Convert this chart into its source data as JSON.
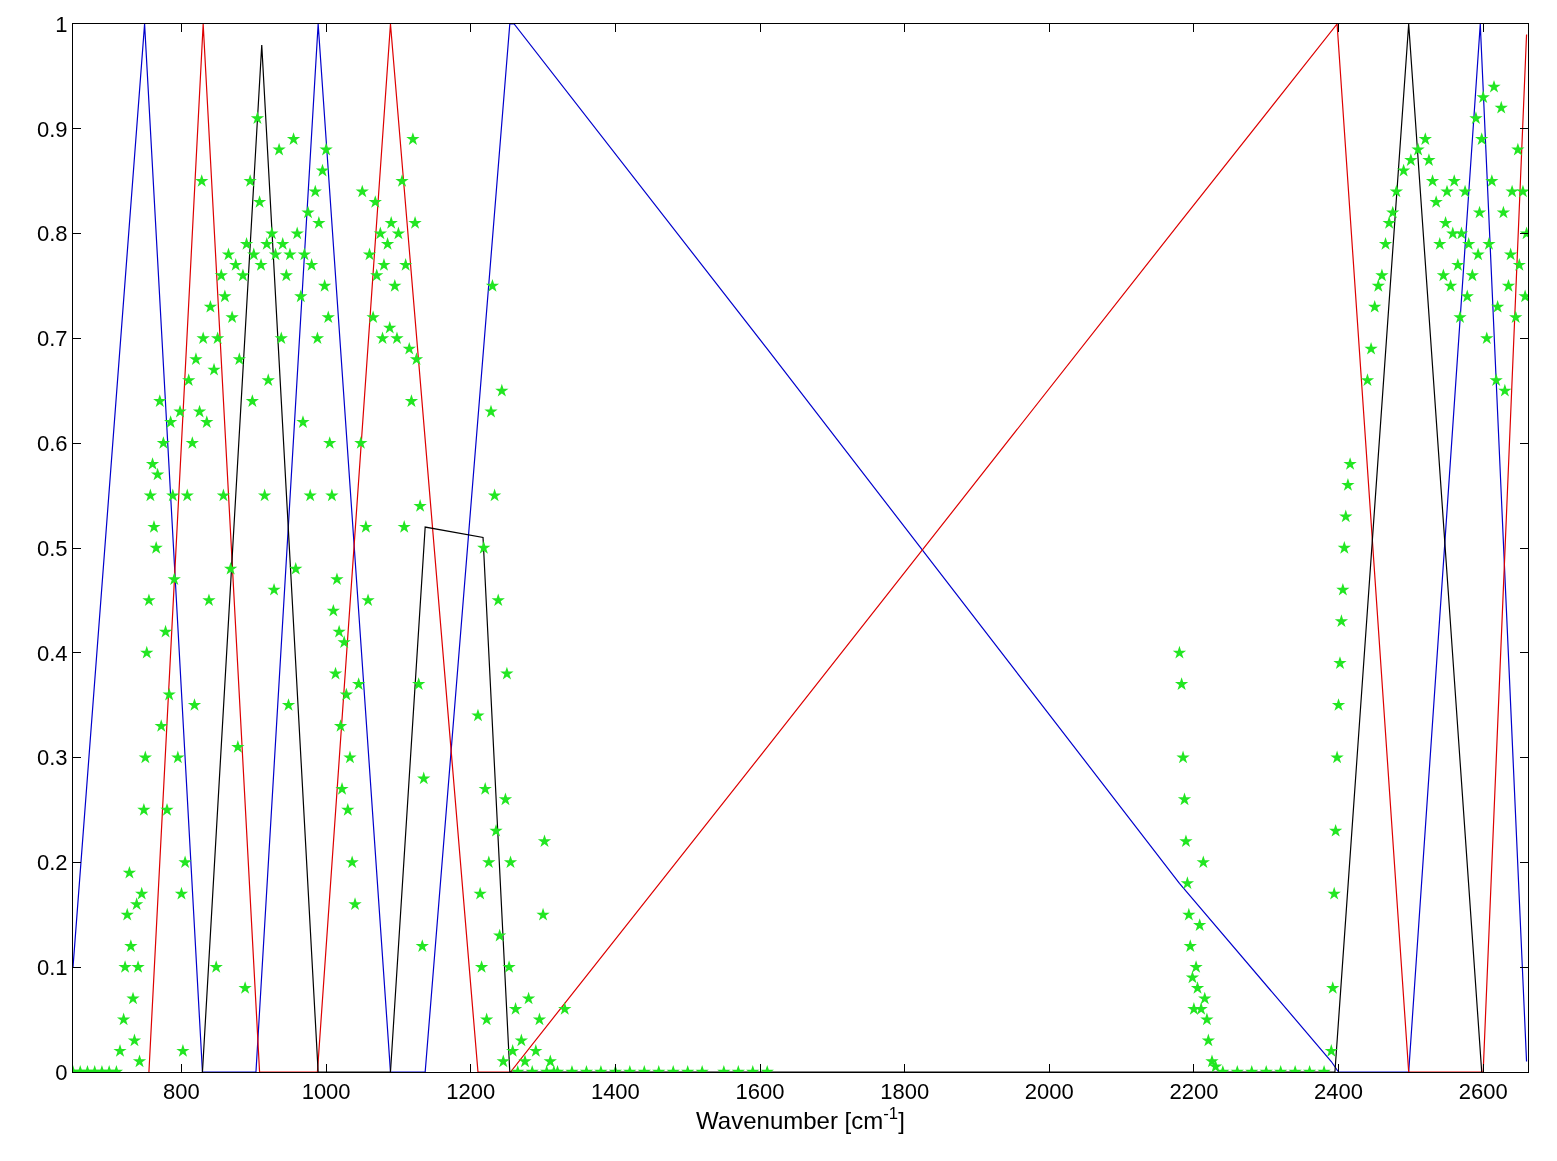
{
  "chart_data": {
    "type": "line",
    "xlabel": "Wavenumber [cm$^{-1}$]",
    "xlim": [
      650,
      2662
    ],
    "ylim": [
      0,
      1
    ],
    "xticks": [
      800,
      1000,
      1200,
      1400,
      1600,
      1800,
      2000,
      2200,
      2400,
      2600
    ],
    "yticks": [
      0,
      0.1,
      0.2,
      0.3,
      0.4,
      0.5,
      0.6,
      0.7,
      0.8,
      0.9,
      1
    ],
    "series": [
      {
        "color": "#0000cc",
        "marker": "none",
        "line_style": "solid",
        "x": [
          650,
          749,
          829,
          903,
          989,
          1089,
          1137,
          1254,
          1260,
          1610,
          2180,
          2390,
          2400,
          2497,
          2596,
          2660
        ],
        "values": [
          0.1,
          1,
          0,
          0,
          1,
          0,
          0,
          1,
          1,
          0.69,
          0.18,
          0.01,
          0,
          0,
          1,
          0.01
        ]
      },
      {
        "color": "#dd0000",
        "marker": "none",
        "line_style": "solid",
        "x": [
          755,
          830,
          908,
          988,
          1089,
          1210,
          1255,
          1610,
          2180,
          2398,
          2497,
          2600,
          2660
        ],
        "values": [
          0,
          1,
          0,
          0,
          1,
          0,
          0,
          0.31,
          0.81,
          1,
          0,
          0,
          0.99
        ]
      },
      {
        "color": "#000000",
        "marker": "none",
        "line_style": "solid",
        "x": [
          829,
          911,
          989,
          1089,
          1137,
          1217,
          1254,
          2395,
          2497,
          2598
        ],
        "values": [
          0,
          0.98,
          0,
          0,
          0.52,
          0.51,
          0,
          0,
          1,
          0
        ]
      },
      {
        "type": "scatter",
        "color": "#22e622",
        "marker": "star",
        "x": [
          650,
          660,
          670,
          680,
          690,
          700,
          710,
          715,
          720,
          722,
          725,
          728,
          730,
          733,
          735,
          738,
          740,
          742,
          745,
          748,
          750,
          752,
          755,
          757,
          760,
          762,
          765,
          767,
          770,
          772,
          775,
          778,
          780,
          783,
          785,
          788,
          790,
          795,
          798,
          800,
          802,
          805,
          808,
          810,
          815,
          818,
          820,
          825,
          828,
          830,
          835,
          838,
          840,
          845,
          848,
          850,
          855,
          858,
          860,
          865,
          868,
          870,
          875,
          878,
          880,
          885,
          888,
          890,
          895,
          898,
          900,
          905,
          908,
          910,
          915,
          918,
          920,
          925,
          928,
          930,
          935,
          938,
          940,
          945,
          948,
          950,
          955,
          958,
          960,
          965,
          968,
          970,
          975,
          978,
          980,
          985,
          988,
          990,
          995,
          998,
          1000,
          1003,
          1005,
          1008,
          1010,
          1013,
          1015,
          1018,
          1020,
          1022,
          1025,
          1028,
          1030,
          1033,
          1036,
          1040,
          1045,
          1048,
          1050,
          1055,
          1058,
          1060,
          1065,
          1068,
          1070,
          1075,
          1078,
          1080,
          1085,
          1088,
          1090,
          1095,
          1098,
          1100,
          1105,
          1108,
          1110,
          1115,
          1118,
          1120,
          1123,
          1125,
          1128,
          1130,
          1133,
          1135,
          1210,
          1213,
          1215,
          1218,
          1220,
          1222,
          1225,
          1228,
          1230,
          1233,
          1235,
          1238,
          1240,
          1243,
          1245,
          1248,
          1250,
          1253,
          1255,
          1258,
          1262,
          1265,
          1270,
          1275,
          1280,
          1285,
          1290,
          1295,
          1300,
          1302,
          1305,
          1310,
          1315,
          1320,
          1330,
          1340,
          1360,
          1380,
          1400,
          1420,
          1440,
          1460,
          1480,
          1500,
          1520,
          1550,
          1570,
          1590,
          1610,
          2180,
          2183,
          2185,
          2187,
          2189,
          2191,
          2193,
          2195,
          2198,
          2200,
          2203,
          2205,
          2208,
          2210,
          2213,
          2215,
          2218,
          2220,
          2225,
          2230,
          2240,
          2260,
          2280,
          2300,
          2320,
          2340,
          2360,
          2380,
          2390,
          2392,
          2394,
          2396,
          2398,
          2400,
          2402,
          2404,
          2406,
          2408,
          2410,
          2413,
          2416,
          2440,
          2445,
          2450,
          2455,
          2460,
          2465,
          2470,
          2475,
          2480,
          2490,
          2500,
          2510,
          2520,
          2525,
          2530,
          2535,
          2540,
          2545,
          2548,
          2550,
          2555,
          2558,
          2560,
          2565,
          2568,
          2570,
          2575,
          2578,
          2580,
          2585,
          2590,
          2593,
          2595,
          2598,
          2600,
          2605,
          2608,
          2612,
          2615,
          2618,
          2620,
          2625,
          2628,
          2630,
          2635,
          2638,
          2640,
          2645,
          2648,
          2650,
          2655,
          2658,
          2660
        ],
        "values": [
          0,
          0,
          0,
          0,
          0,
          0,
          0,
          0.02,
          0.05,
          0.1,
          0.15,
          0.19,
          0.12,
          0.07,
          0.03,
          0.16,
          0.1,
          0.01,
          0.17,
          0.25,
          0.3,
          0.4,
          0.45,
          0.55,
          0.58,
          0.52,
          0.5,
          0.57,
          0.64,
          0.33,
          0.6,
          0.42,
          0.25,
          0.36,
          0.62,
          0.55,
          0.47,
          0.3,
          0.63,
          0.17,
          0.02,
          0.2,
          0.55,
          0.66,
          0.6,
          0.35,
          0.68,
          0.63,
          0.85,
          0.7,
          0.62,
          0.45,
          0.73,
          0.67,
          0.1,
          0.7,
          0.76,
          0.55,
          0.74,
          0.78,
          0.48,
          0.72,
          0.77,
          0.31,
          0.68,
          0.76,
          0.08,
          0.79,
          0.85,
          0.64,
          0.78,
          0.91,
          0.83,
          0.77,
          0.55,
          0.79,
          0.66,
          0.8,
          0.46,
          0.78,
          0.88,
          0.7,
          0.79,
          0.76,
          0.35,
          0.78,
          0.89,
          0.48,
          0.8,
          0.74,
          0.62,
          0.78,
          0.82,
          0.55,
          0.77,
          0.84,
          0.7,
          0.81,
          0.86,
          0.75,
          0.88,
          0.72,
          0.6,
          0.55,
          0.44,
          0.38,
          0.47,
          0.42,
          0.33,
          0.27,
          0.41,
          0.36,
          0.25,
          0.3,
          0.2,
          0.16,
          0.37,
          0.6,
          0.84,
          0.52,
          0.45,
          0.78,
          0.72,
          0.83,
          0.76,
          0.8,
          0.7,
          0.77,
          0.79,
          0.71,
          0.81,
          0.75,
          0.7,
          0.8,
          0.85,
          0.52,
          0.77,
          0.69,
          0.64,
          0.89,
          0.81,
          0.68,
          0.37,
          0.54,
          0.12,
          0.28,
          0.34,
          0.17,
          0.1,
          0.5,
          0.27,
          0.05,
          0.2,
          0.63,
          0.75,
          0.55,
          0.23,
          0.45,
          0.13,
          0.65,
          0.01,
          0.26,
          0.38,
          0.1,
          0.2,
          0.02,
          0.06,
          0,
          0.03,
          0.01,
          0.07,
          0,
          0.02,
          0.05,
          0.15,
          0.22,
          0,
          0.01,
          0,
          0,
          0.06,
          0,
          0,
          0,
          0,
          0,
          0,
          0,
          0,
          0,
          0,
          0,
          0,
          0,
          0,
          0.4,
          0.37,
          0.3,
          0.26,
          0.22,
          0.18,
          0.15,
          0.12,
          0.09,
          0.06,
          0.1,
          0.08,
          0.14,
          0.06,
          0.2,
          0.07,
          0.05,
          0.03,
          0.01,
          0.005,
          0,
          0,
          0,
          0,
          0,
          0,
          0,
          0,
          0.02,
          0.08,
          0.17,
          0.23,
          0.3,
          0.35,
          0.39,
          0.43,
          0.46,
          0.5,
          0.53,
          0.56,
          0.58,
          0.66,
          0.69,
          0.73,
          0.75,
          0.76,
          0.79,
          0.81,
          0.82,
          0.84,
          0.86,
          0.87,
          0.88,
          0.89,
          0.87,
          0.85,
          0.83,
          0.79,
          0.76,
          0.81,
          0.84,
          0.75,
          0.8,
          0.85,
          0.77,
          0.72,
          0.8,
          0.84,
          0.74,
          0.79,
          0.76,
          0.91,
          0.78,
          0.82,
          0.89,
          0.93,
          0.7,
          0.79,
          0.85,
          0.94,
          0.66,
          0.73,
          0.92,
          0.82,
          0.65,
          0.75,
          0.78,
          0.84,
          0.72,
          0.88,
          0.77,
          0.84,
          0.74,
          0.8
        ]
      }
    ]
  }
}
